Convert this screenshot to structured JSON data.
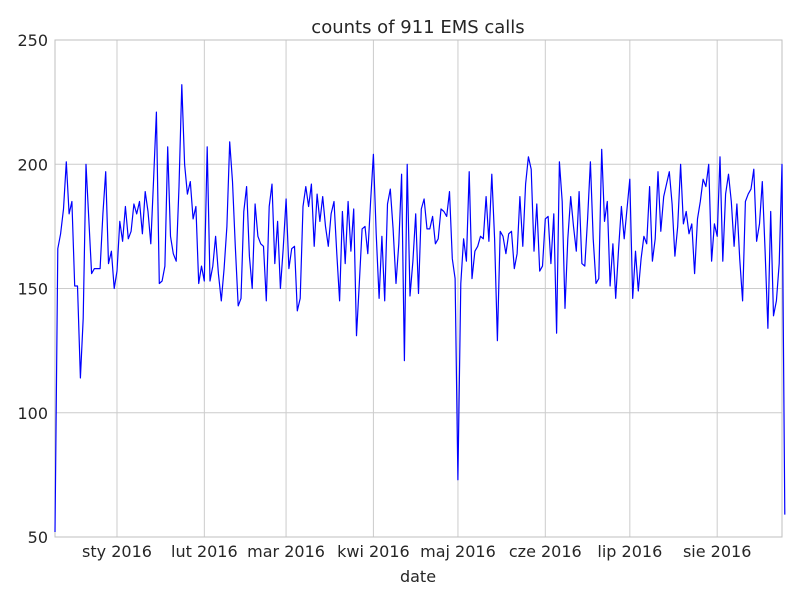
{
  "chart_data": {
    "type": "line",
    "title": "counts of 911 EMS calls",
    "xlabel": "date",
    "ylabel": "",
    "ylim": [
      50,
      250
    ],
    "yticks": [
      50,
      100,
      150,
      200,
      250
    ],
    "xlim": [
      "2015-12-10",
      "2016-08-24"
    ],
    "xticks": [
      {
        "date": "2016-01-01",
        "label": "sty 2016"
      },
      {
        "date": "2016-02-01",
        "label": "lut 2016"
      },
      {
        "date": "2016-03-01",
        "label": "mar 2016"
      },
      {
        "date": "2016-04-01",
        "label": "kwi 2016"
      },
      {
        "date": "2016-05-01",
        "label": "maj 2016"
      },
      {
        "date": "2016-06-01",
        "label": "cze 2016"
      },
      {
        "date": "2016-07-01",
        "label": "lip 2016"
      },
      {
        "date": "2016-08-01",
        "label": "sie 2016"
      }
    ],
    "grid": true,
    "series": [
      {
        "color": "#0000ff",
        "x_start": "2015-12-10",
        "x_step_days": 1,
        "values": [
          52,
          166,
          172,
          182,
          201,
          180,
          185,
          151,
          151,
          114,
          138,
          200,
          178,
          156,
          158,
          158,
          158,
          180,
          197,
          160,
          165,
          150,
          157,
          177,
          169,
          183,
          170,
          173,
          184,
          180,
          185,
          172,
          189,
          181,
          168,
          194,
          221,
          152,
          153,
          159,
          207,
          171,
          164,
          161,
          191,
          232,
          200,
          188,
          193,
          178,
          183,
          152,
          159,
          153,
          207,
          153,
          159,
          171,
          156,
          145,
          158,
          175,
          209,
          193,
          167,
          143,
          146,
          181,
          191,
          163,
          150,
          184,
          171,
          168,
          167,
          145,
          183,
          192,
          160,
          177,
          150,
          166,
          186,
          158,
          166,
          167,
          141,
          146,
          183,
          191,
          183,
          192,
          167,
          188,
          177,
          187,
          175,
          167,
          180,
          185,
          164,
          145,
          181,
          160,
          185,
          165,
          182,
          131,
          152,
          174,
          175,
          164,
          185,
          204,
          172,
          146,
          171,
          145,
          184,
          190,
          174,
          152,
          168,
          196,
          121,
          200,
          147,
          161,
          180,
          148,
          182,
          186,
          174,
          174,
          179,
          168,
          170,
          182,
          181,
          179,
          189,
          162,
          154,
          73,
          152,
          170,
          161,
          197,
          154,
          165,
          167,
          171,
          170,
          187,
          169,
          196,
          170,
          129,
          173,
          171,
          164,
          172,
          173,
          158,
          164,
          187,
          167,
          192,
          203,
          198,
          165,
          184,
          157,
          159,
          178,
          179,
          160,
          180,
          132,
          201,
          185,
          142,
          170,
          187,
          175,
          165,
          189,
          160,
          159,
          178,
          201,
          170,
          152,
          154,
          206,
          177,
          185,
          151,
          168,
          146,
          166,
          183,
          170,
          182,
          194,
          146,
          165,
          149,
          162,
          171,
          168,
          191,
          161,
          170,
          197,
          173,
          187,
          192,
          197,
          184,
          163,
          175,
          200,
          176,
          181,
          172,
          176,
          156,
          178,
          185,
          194,
          191,
          200,
          161,
          176,
          171,
          203,
          161,
          188,
          196,
          185,
          167,
          184,
          162,
          145,
          185,
          188,
          190,
          198,
          169,
          176,
          193,
          165,
          134,
          181,
          139,
          145,
          160,
          200,
          59
        ]
      }
    ]
  }
}
